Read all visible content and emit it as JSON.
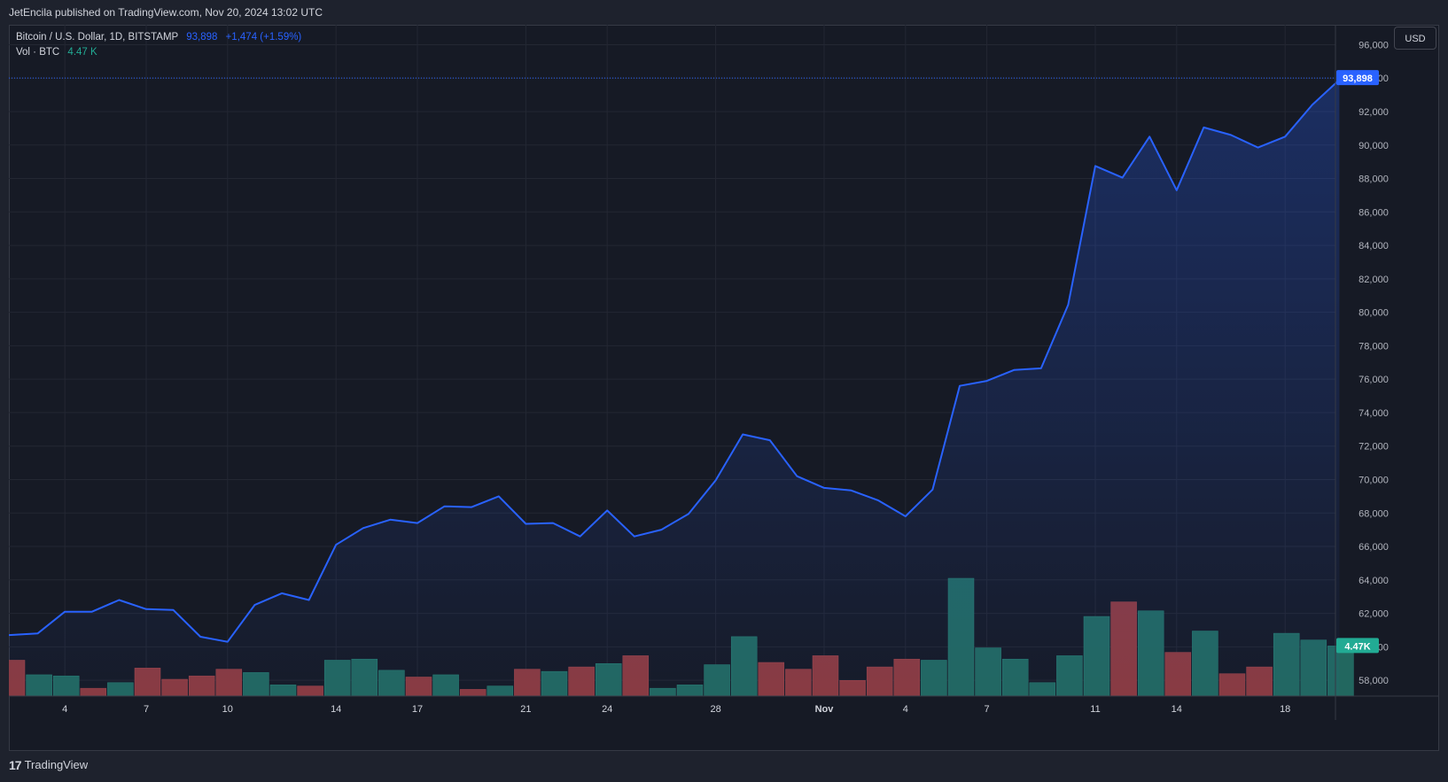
{
  "header": {
    "published": "JetEncila published on TradingView.com, Nov 20, 2024 13:02 UTC"
  },
  "legend": {
    "symbol": "Bitcoin / U.S. Dollar, 1D, BITSTAMP",
    "price": "93,898",
    "change": "+1,474 (+1.59%)",
    "volume_label": "Vol · BTC",
    "volume_value": "4.47 K"
  },
  "currency_button": "USD",
  "footer": {
    "brand": "TradingView",
    "logo_text": "17"
  },
  "colors": {
    "line": "#2962ff",
    "area_top": "#1e2d6b",
    "vol_up": "#22675f",
    "vol_down": "#8a3a3f",
    "grid": "#232733",
    "price_label_bg": "#2962ff",
    "vol_label_bg": "#22ab94"
  },
  "chart_data": {
    "type": "line",
    "y_axis": {
      "min": 57000,
      "max": 96500,
      "ticks": [
        "96,000",
        "94,000",
        "92,000",
        "90,000",
        "88,000",
        "86,000",
        "84,000",
        "82,000",
        "80,000",
        "78,000",
        "76,000",
        "74,000",
        "72,000",
        "70,000",
        "68,000",
        "66,000",
        "64,000",
        "62,000",
        "60,000",
        "58,000"
      ]
    },
    "x_tick_labels": [
      {
        "label": "4",
        "index": 2
      },
      {
        "label": "7",
        "index": 5
      },
      {
        "label": "10",
        "index": 8
      },
      {
        "label": "14",
        "index": 12
      },
      {
        "label": "17",
        "index": 15
      },
      {
        "label": "21",
        "index": 19
      },
      {
        "label": "24",
        "index": 22
      },
      {
        "label": "28",
        "index": 26
      },
      {
        "label": "Nov",
        "index": 30
      },
      {
        "label": "4",
        "index": 33
      },
      {
        "label": "7",
        "index": 36
      },
      {
        "label": "11",
        "index": 40
      },
      {
        "label": "14",
        "index": 43
      },
      {
        "label": "18",
        "index": 47
      }
    ],
    "close": [
      60700,
      60800,
      62100,
      62100,
      62800,
      62250,
      62200,
      60600,
      60300,
      62500,
      63200,
      62800,
      66100,
      67100,
      67600,
      67400,
      68400,
      68350,
      69000,
      67350,
      67400,
      66600,
      68150,
      66600,
      67000,
      67950,
      69950,
      72700,
      72350,
      70200,
      69500,
      69350,
      68750,
      67800,
      69400,
      75600,
      75900,
      76550,
      76650,
      80450,
      88750,
      88050,
      90500,
      87300,
      91050,
      90600,
      89850,
      90500,
      92400,
      93898
    ],
    "volume": {
      "unit": "K BTC",
      "values": [
        3.2,
        1.9,
        1.8,
        0.7,
        1.2,
        2.5,
        1.5,
        1.8,
        2.4,
        2.1,
        1.0,
        0.9,
        3.2,
        3.3,
        2.3,
        1.7,
        1.9,
        0.6,
        0.9,
        2.4,
        2.2,
        2.6,
        2.9,
        3.6,
        0.7,
        1.0,
        2.8,
        5.3,
        3.0,
        2.4,
        3.6,
        1.4,
        2.6,
        3.3,
        3.2,
        10.5,
        4.3,
        3.3,
        1.2,
        3.6,
        7.1,
        8.4,
        7.6,
        3.9,
        5.8,
        2.0,
        2.6,
        5.6,
        5.0,
        4.47
      ],
      "up": [
        false,
        true,
        true,
        false,
        true,
        false,
        false,
        false,
        false,
        true,
        true,
        false,
        true,
        true,
        true,
        false,
        true,
        false,
        true,
        false,
        true,
        false,
        true,
        false,
        true,
        true,
        true,
        true,
        false,
        false,
        false,
        false,
        false,
        false,
        true,
        true,
        true,
        true,
        true,
        true,
        true,
        false,
        true,
        false,
        true,
        false,
        false,
        true,
        true,
        true
      ],
      "max": 15
    },
    "current_price_label": "93,898",
    "current_volume_label": "4.47K"
  }
}
